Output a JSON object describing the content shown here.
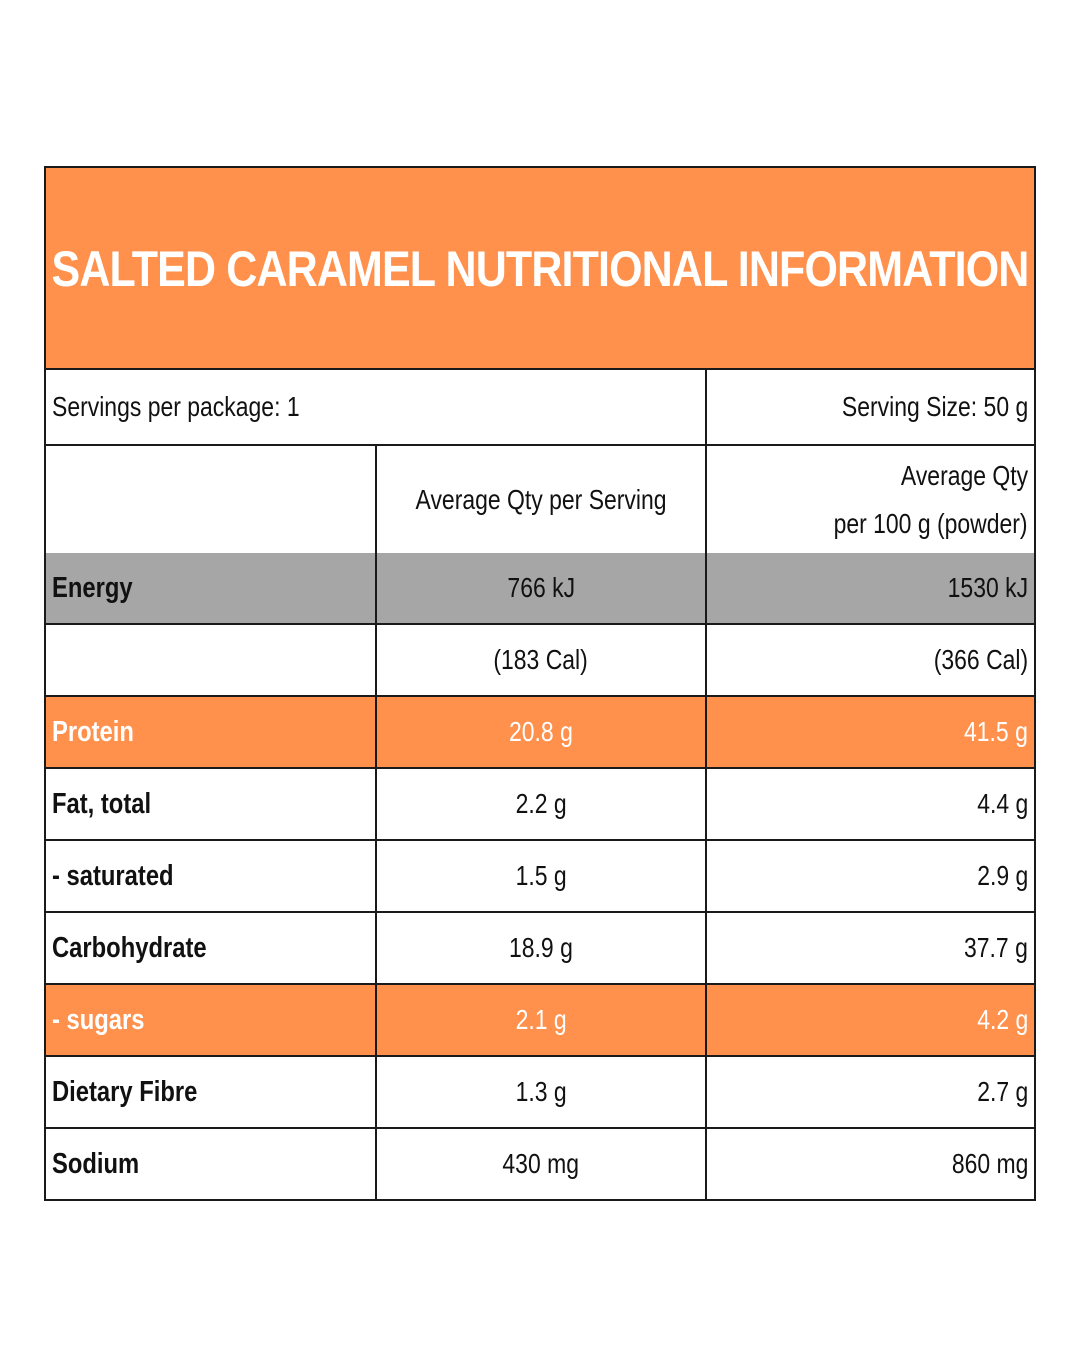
{
  "title": "SALTED CARAMEL NUTRITIONAL INFORMATION",
  "servings_per_package": "Servings per package: 1",
  "serving_size": "Serving Size: 50 g",
  "columns": {
    "per_serving": "Average Qty per Serving",
    "per_100g_line1": "Average Qty",
    "per_100g_line2": "per 100 g (powder)"
  },
  "rows": [
    {
      "name": "Energy",
      "per_serving": "766 kJ",
      "per_100g": "1530 kJ",
      "highlight": "grey"
    },
    {
      "name": "",
      "per_serving": "(183 Cal)",
      "per_100g": "(366 Cal)",
      "highlight": "none"
    },
    {
      "name": "Protein",
      "per_serving": "20.8 g",
      "per_100g": "41.5 g",
      "highlight": "orange"
    },
    {
      "name": "Fat, total",
      "per_serving": "2.2 g",
      "per_100g": "4.4 g",
      "highlight": "none"
    },
    {
      "name": "- saturated",
      "per_serving": "1.5 g",
      "per_100g": "2.9 g",
      "highlight": "none"
    },
    {
      "name": "Carbohydrate",
      "per_serving": "18.9 g",
      "per_100g": "37.7 g",
      "highlight": "none"
    },
    {
      "name": "- sugars",
      "per_serving": "2.1 g",
      "per_100g": "4.2 g",
      "highlight": "orange"
    },
    {
      "name": "Dietary Fibre",
      "per_serving": "1.3 g",
      "per_100g": "2.7 g",
      "highlight": "none"
    },
    {
      "name": "Sodium",
      "per_serving": "430 mg",
      "per_100g": "860 mg",
      "highlight": "none"
    }
  ],
  "colors": {
    "accent_orange": "#ff914d",
    "highlight_grey": "#a6a6a6",
    "border": "#1a1a1a"
  }
}
